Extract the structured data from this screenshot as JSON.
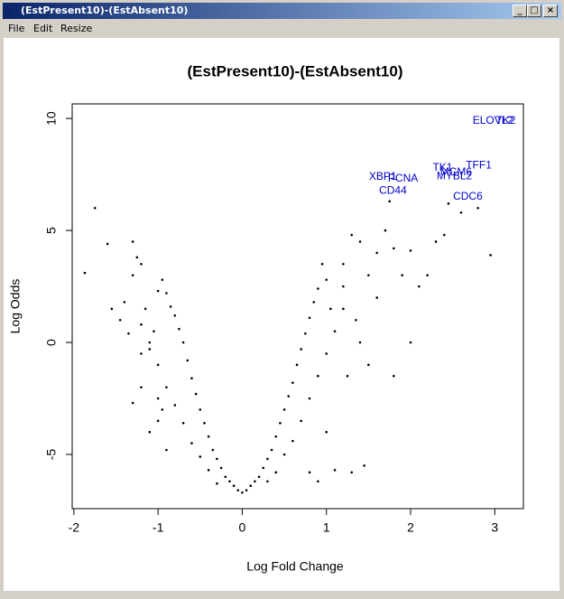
{
  "window": {
    "title": "(EstPresent10)-(EstAbsent10)",
    "menu": [
      "File",
      "Edit",
      "Resize"
    ]
  },
  "chart_data": {
    "type": "scatter",
    "title": "(EstPresent10)-(EstAbsent10)",
    "xlabel": "Log Fold Change",
    "ylabel": "Log Odds",
    "color": "#000000",
    "x": [
      0,
      0.05,
      -0.05,
      0.1,
      -0.1,
      0.15,
      -0.15,
      0.2,
      -0.2,
      0.25,
      -0.25,
      0.3,
      -0.3,
      0.35,
      -0.35,
      0.4,
      -0.4,
      0.45,
      -0.45,
      0.5,
      -0.5,
      0.55,
      -0.55,
      0.6,
      -0.6,
      0.65,
      -0.65,
      0.7,
      -0.7,
      0.75,
      -0.75,
      0.8,
      -0.8,
      0.85,
      -0.85,
      0.9,
      -0.9,
      0.3,
      -0.3,
      0.4,
      -0.4,
      0.5,
      -0.5,
      0.6,
      -0.6,
      0.7,
      -0.7,
      0.8,
      -0.8,
      0.9,
      -0.9,
      1.0,
      -1.0,
      1.1,
      -1.1,
      1.2,
      -1.2,
      1.0,
      -1.0,
      0.8,
      -0.9,
      1.2,
      1.3,
      1.4,
      1.5,
      1.6,
      1.7,
      1.75,
      1.8,
      1.9,
      2.0,
      2.1,
      2.2,
      2.3,
      2.4,
      2.45,
      2.6,
      2.8,
      2.95,
      1.5,
      1.8,
      2.0,
      1.1,
      1.3,
      1.45,
      0.9,
      1.2,
      1.0,
      0.95,
      1.35,
      1.25,
      1.4,
      1.6,
      1.05,
      -1.87,
      -1.75,
      -1.6,
      -1.55,
      -1.4,
      -1.3,
      -1.25,
      -1.2,
      -1.35,
      -1.3,
      -1.2,
      -1.1,
      -1.0,
      -0.95,
      -1.05,
      -1.15,
      -1.3,
      -1.45,
      -1.0,
      -1.1,
      -0.95,
      -1.2
    ],
    "y": [
      -6.7,
      -6.6,
      -6.6,
      -6.4,
      -6.4,
      -6.2,
      -6.2,
      -6.0,
      -6.0,
      -5.6,
      -5.6,
      -5.2,
      -5.2,
      -4.8,
      -4.8,
      -4.2,
      -4.2,
      -3.6,
      -3.6,
      -3.0,
      -3.0,
      -2.4,
      -2.3,
      -1.8,
      -1.6,
      -1.0,
      -0.8,
      -0.3,
      0,
      0.4,
      0.6,
      1.1,
      1.2,
      1.8,
      1.6,
      2.4,
      2.2,
      -6.2,
      -6.3,
      -5.8,
      -5.7,
      -5.0,
      -5.1,
      -4.4,
      -4.5,
      -3.5,
      -3.6,
      -2.5,
      -2.8,
      -1.5,
      -2.0,
      -0.5,
      -1.0,
      0.5,
      0,
      1.5,
      0.8,
      -4.0,
      -3.5,
      -5.8,
      -4.8,
      3.5,
      4.8,
      4.5,
      3.0,
      4.0,
      5.0,
      6.3,
      4.2,
      3.0,
      4.1,
      2.5,
      3.0,
      4.5,
      4.8,
      6.2,
      5.8,
      6.0,
      3.9,
      -1.0,
      -1.5,
      0,
      -5.7,
      -5.8,
      -5.5,
      -6.2,
      2.5,
      2.8,
      3.5,
      1.0,
      -1.5,
      0.0,
      2.0,
      1.5,
      3.1,
      6.0,
      4.4,
      1.5,
      1.8,
      4.5,
      3.8,
      3.5,
      0.4,
      -2.7,
      -0.5,
      -0.3,
      2.3,
      2.8,
      0.5,
      1.5,
      3.0,
      1.0,
      -2.5,
      -4.0,
      -3.0,
      -2.0
    ],
    "annotations": [
      {
        "text": "ELOVL2",
        "x": 2.98,
        "y": 9.9
      },
      {
        "text": "TK2",
        "x": 3.13,
        "y": 9.9
      },
      {
        "text": "XBP1",
        "x": 1.67,
        "y": 7.38
      },
      {
        "text": "PCNA",
        "x": 1.91,
        "y": 7.3
      },
      {
        "text": "CD44",
        "x": 1.79,
        "y": 6.77
      },
      {
        "text": "TK1",
        "x": 2.38,
        "y": 7.8
      },
      {
        "text": "MCM6",
        "x": 2.54,
        "y": 7.6
      },
      {
        "text": "TFF1",
        "x": 2.81,
        "y": 7.9
      },
      {
        "text": "MYBL2",
        "x": 2.52,
        "y": 7.4
      },
      {
        "text": "CDC6",
        "x": 2.68,
        "y": 6.5
      }
    ],
    "annotation_color": "#0000cc",
    "xlim": [
      -2.02,
      3.34
    ],
    "ylim": [
      -7.42,
      10.65
    ],
    "xticks": [
      -2,
      -1,
      0,
      1,
      2,
      3
    ],
    "yticks": [
      -5,
      0,
      5,
      10
    ]
  }
}
